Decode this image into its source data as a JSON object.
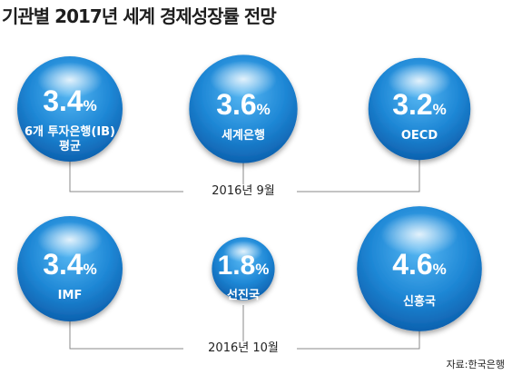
{
  "title": "기관별 2017년 세계 경제성장률 전망",
  "source": "자료:한국은행",
  "colors": {
    "bubble_light": "#4fb0ee",
    "bubble_mid": "#1e86d4",
    "bubble_dark": "#0b5fae",
    "connector": "#8a8a8a"
  },
  "chart_data": {
    "type": "bubble",
    "unit": "%",
    "groups": [
      {
        "label": "2016년 9월",
        "items": [
          {
            "name": "6개 투자은행(IB) 평균",
            "name_lines": [
              "6개 투자은행(IB)",
              "평균"
            ],
            "value": 3.4
          },
          {
            "name": "세계은행",
            "name_lines": [
              "세계은행"
            ],
            "value": 3.6
          },
          {
            "name": "OECD",
            "name_lines": [
              "OECD"
            ],
            "value": 3.2
          }
        ]
      },
      {
        "label": "2016년 10월",
        "items": [
          {
            "name": "IMF",
            "name_lines": [
              "IMF"
            ],
            "value": 3.4
          },
          {
            "name": "선진국",
            "name_lines": [
              "선진국"
            ],
            "value": 1.8
          },
          {
            "name": "신흥국",
            "name_lines": [
              "신흥국"
            ],
            "value": 4.6
          }
        ]
      }
    ]
  }
}
